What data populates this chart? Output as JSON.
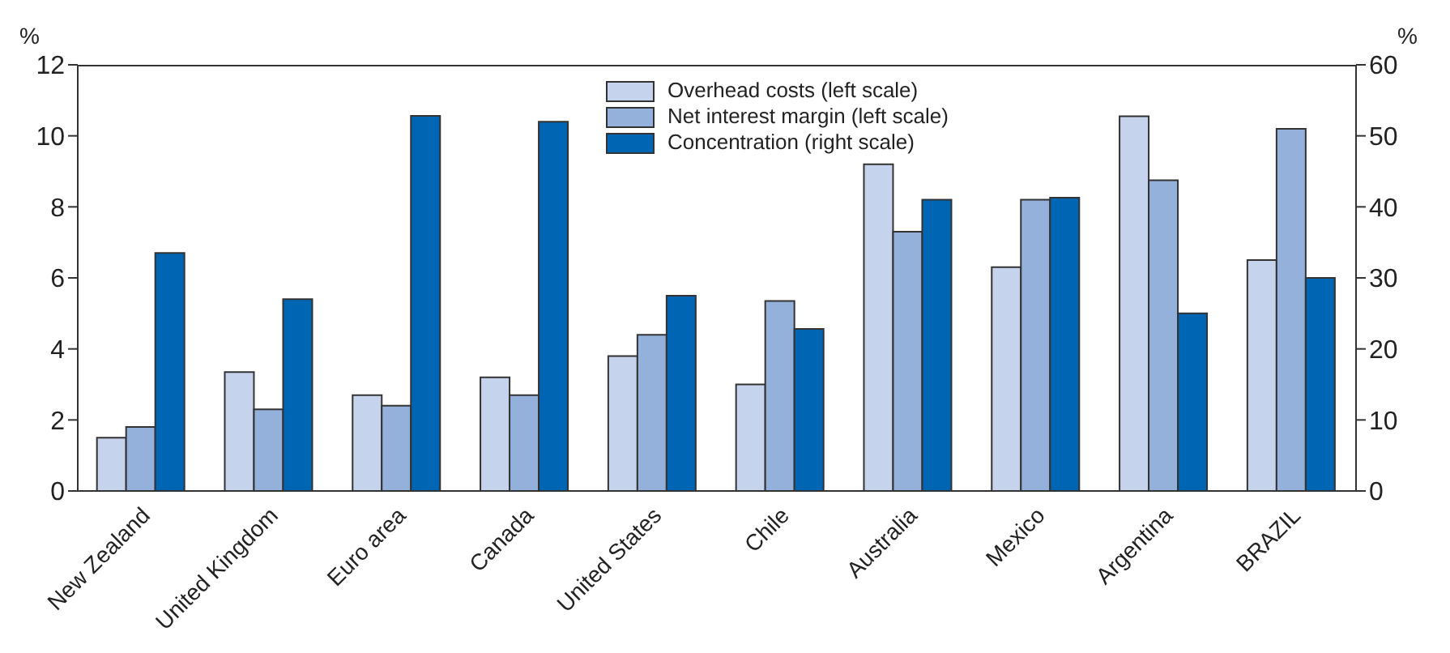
{
  "chart_data": {
    "type": "bar",
    "ylabel": "%",
    "y2label": "%",
    "categories": [
      "New Zealand",
      "United Kingdom",
      "Euro area",
      "Canada",
      "United States",
      "Chile",
      "Australia",
      "Mexico",
      "Argentina",
      "BRAZIL"
    ],
    "series": [
      {
        "name": "Overhead costs (left scale)",
        "color": "#c6d3ec",
        "values": [
          1.5,
          3.35,
          2.7,
          3.2,
          3.8,
          3.0,
          9.2,
          6.3,
          10.55,
          6.5
        ]
      },
      {
        "name": "Net interest margin (left scale)",
        "color": "#94b1dc",
        "values": [
          1.8,
          2.3,
          2.4,
          2.7,
          4.4,
          5.35,
          7.3,
          8.2,
          8.75,
          10.2
        ]
      },
      {
        "name": "Concentration (right scale)",
        "color": "#0066b3",
        "axis": "y2",
        "values": [
          33.5,
          27,
          52.8,
          52,
          27.5,
          22.8,
          41,
          41.3,
          25,
          30
        ]
      }
    ],
    "ylim": [
      0,
      12
    ],
    "yticks": [
      0,
      2,
      4,
      6,
      8,
      10,
      12
    ],
    "y2lim": [
      0,
      60
    ],
    "y2ticks": [
      0,
      10,
      20,
      30,
      40,
      50,
      60
    ],
    "legend": "top",
    "grid": false
  }
}
